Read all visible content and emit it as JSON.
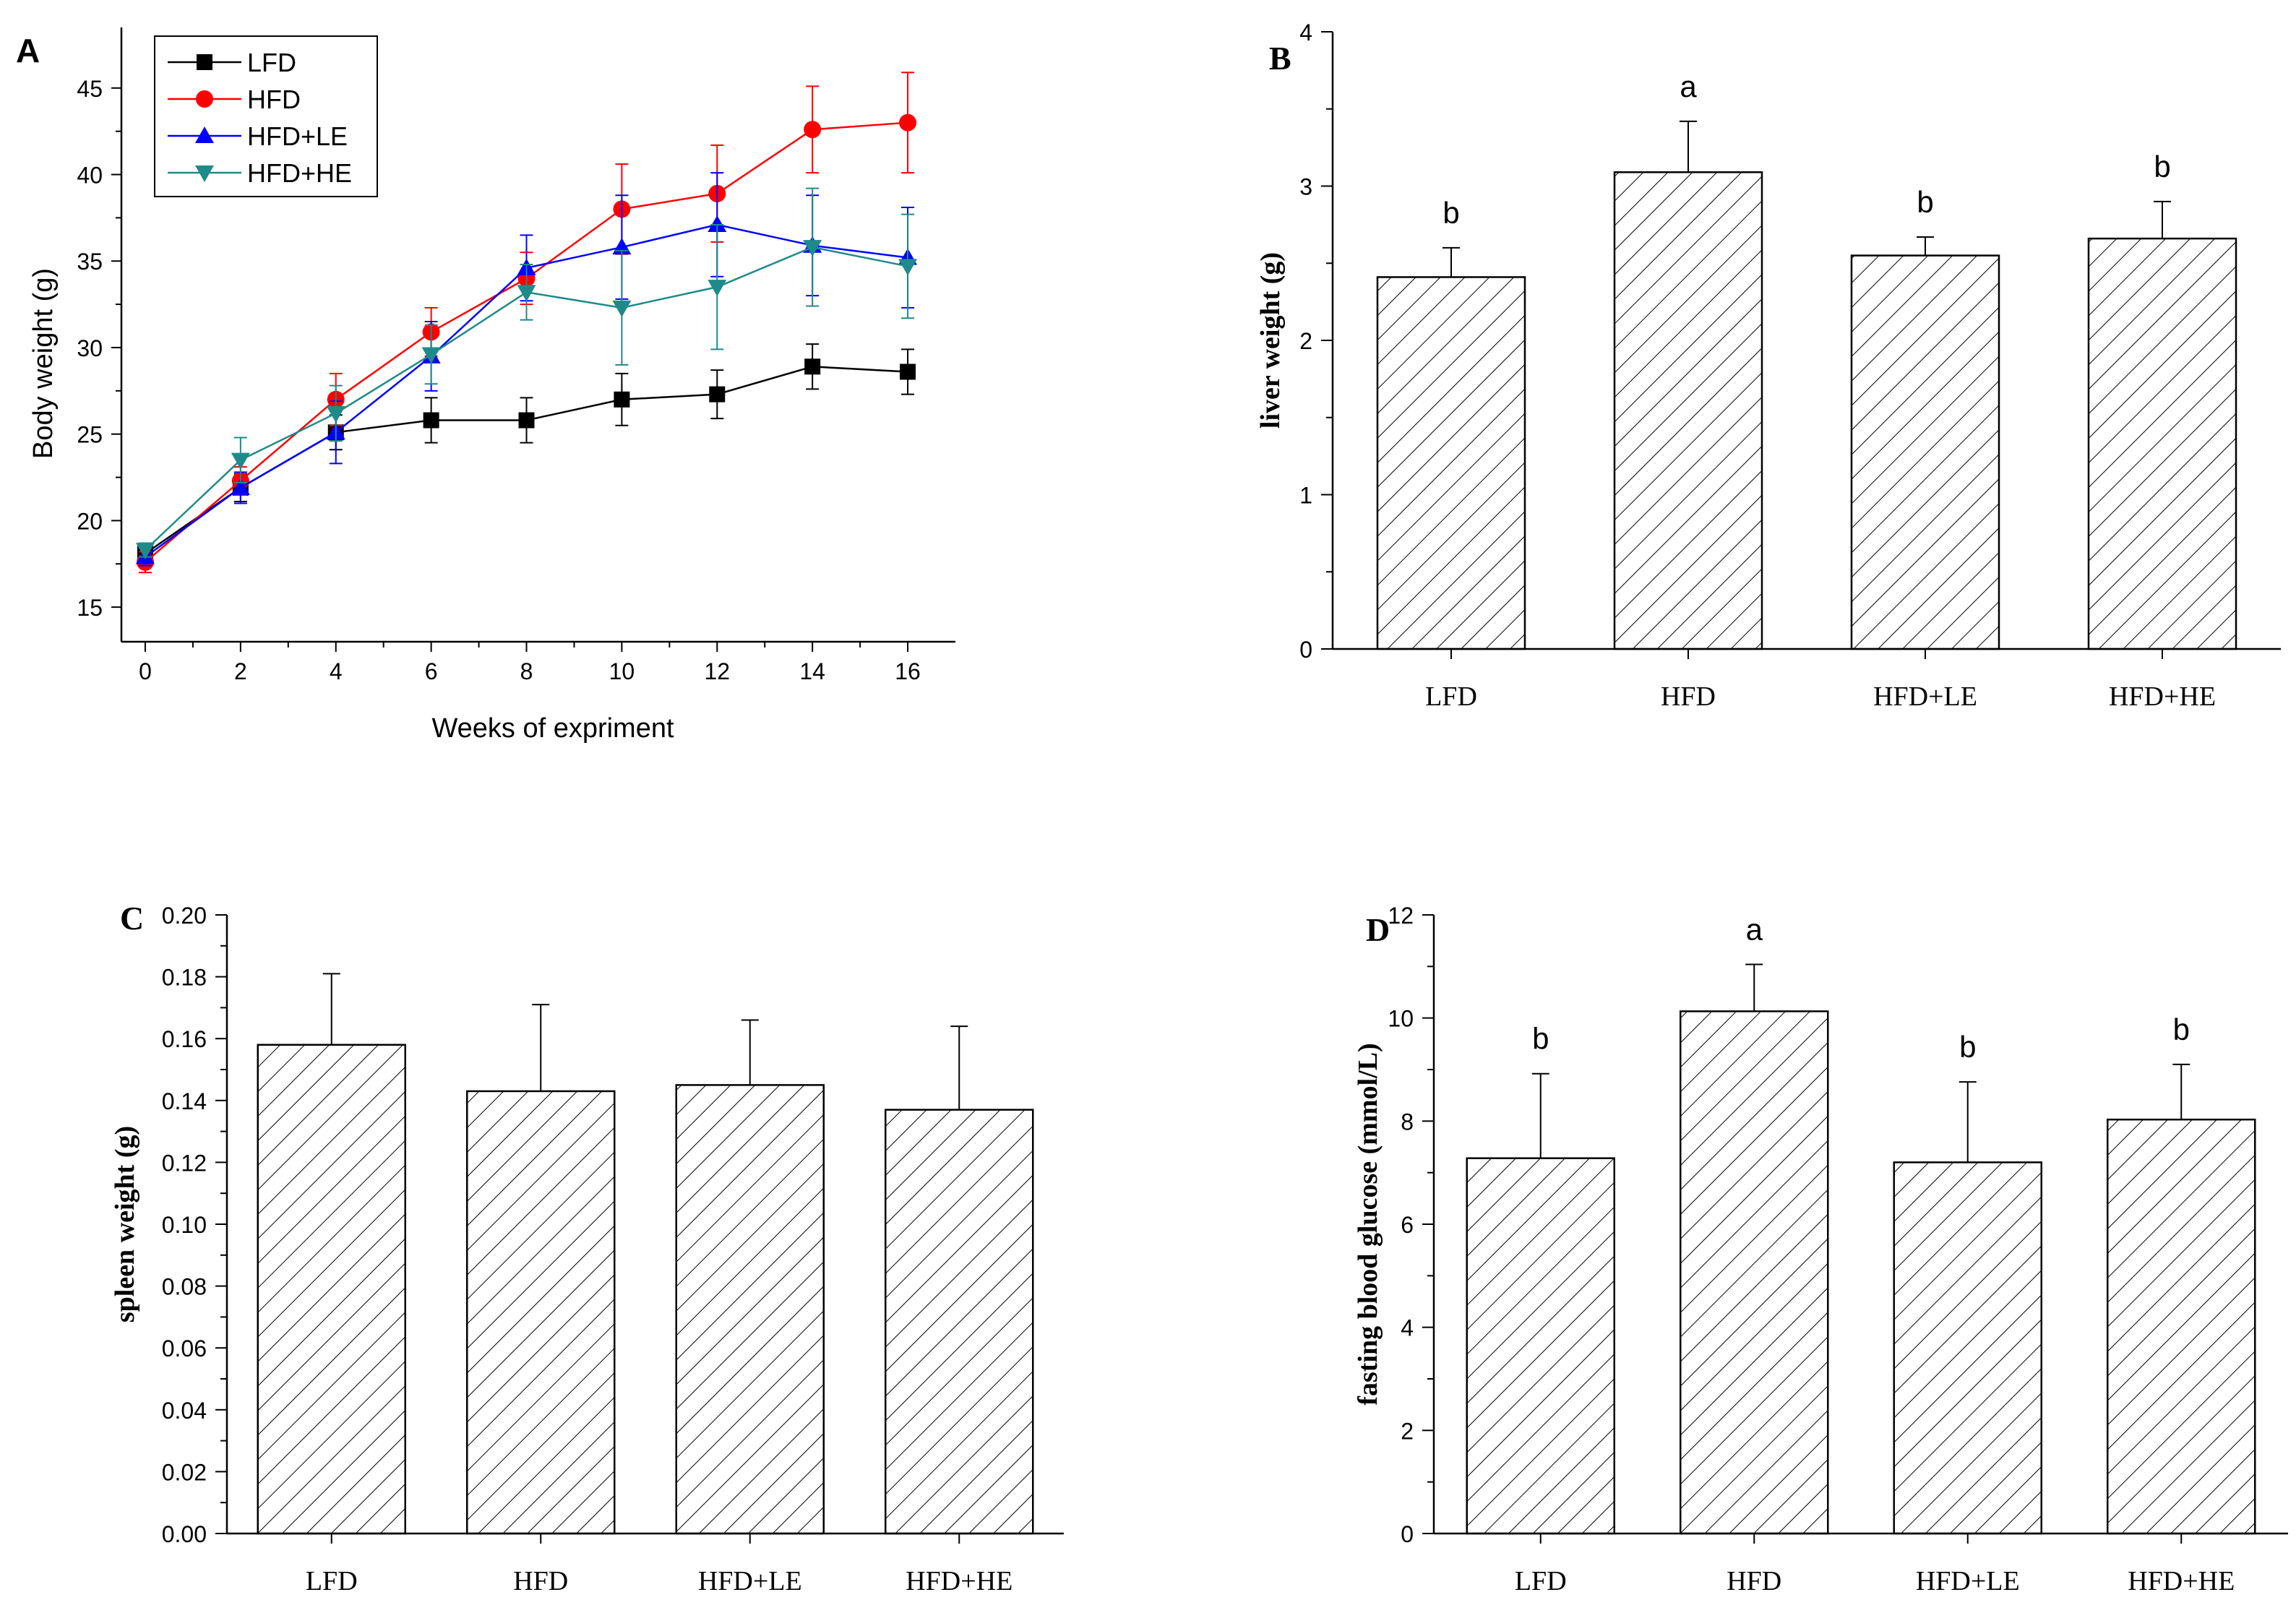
{
  "figure": {
    "panels": [
      "A",
      "B",
      "C",
      "D"
    ]
  },
  "chart_data": [
    {
      "panel": "A",
      "type": "line",
      "title": "",
      "xlabel": "Weeks of expriment",
      "ylabel": "Body weight (g)",
      "x": [
        0,
        2,
        4,
        6,
        8,
        10,
        12,
        14,
        16
      ],
      "xlim": [
        -0.5,
        17
      ],
      "ylim": [
        13,
        48.5
      ],
      "xticks": [
        0,
        2,
        4,
        6,
        8,
        10,
        12,
        14,
        16
      ],
      "yticks": [
        15,
        20,
        25,
        30,
        35,
        40,
        45
      ],
      "legend_position": "top-left",
      "series": [
        {
          "name": "LFD",
          "color": "#000000",
          "marker": "square",
          "values": [
            18.1,
            21.9,
            25.1,
            25.8,
            25.8,
            27.0,
            27.3,
            28.9,
            28.6
          ],
          "errors": [
            0.5,
            0.8,
            1.0,
            1.3,
            1.3,
            1.5,
            1.4,
            1.3,
            1.3
          ]
        },
        {
          "name": "HFD",
          "color": "#ff0000",
          "marker": "circle",
          "values": [
            17.6,
            22.3,
            27.0,
            30.9,
            34.0,
            38.0,
            38.9,
            42.6,
            43.0
          ],
          "errors": [
            0.6,
            0.8,
            1.5,
            1.4,
            1.5,
            2.6,
            2.8,
            2.5,
            2.9
          ]
        },
        {
          "name": "HFD+LE",
          "color": "#0000ff",
          "marker": "triangle-up",
          "values": [
            17.9,
            21.9,
            25.1,
            29.5,
            34.6,
            35.8,
            37.1,
            35.9,
            35.2
          ],
          "errors": [
            0.5,
            0.9,
            1.8,
            2.0,
            1.9,
            3.0,
            3.0,
            2.9,
            2.9
          ]
        },
        {
          "name": "HFD+HE",
          "color": "#1f8a8a",
          "marker": "triangle-down",
          "values": [
            18.3,
            23.5,
            26.2,
            29.6,
            33.2,
            32.3,
            33.5,
            35.8,
            34.7
          ],
          "errors": [
            0.4,
            1.3,
            1.6,
            1.7,
            1.6,
            3.3,
            3.6,
            3.4,
            3.0
          ]
        }
      ]
    },
    {
      "panel": "B",
      "type": "bar",
      "title": "",
      "xlabel": "",
      "ylabel": "liver weight (g)",
      "categories": [
        "LFD",
        "HFD",
        "HFD+LE",
        "HFD+HE"
      ],
      "values": [
        2.41,
        3.09,
        2.55,
        2.66
      ],
      "errors": [
        0.19,
        0.33,
        0.12,
        0.24
      ],
      "letters": [
        "b",
        "a",
        "b",
        "b"
      ],
      "ylim": [
        0,
        4
      ],
      "yticks": [
        "0",
        "1",
        "2",
        "3",
        "4"
      ]
    },
    {
      "panel": "C",
      "type": "bar",
      "title": "",
      "xlabel": "",
      "ylabel": "spleen weight (g)",
      "categories": [
        "LFD",
        "HFD",
        "HFD+LE",
        "HFD+HE"
      ],
      "values": [
        0.158,
        0.143,
        0.145,
        0.137
      ],
      "errors": [
        0.023,
        0.028,
        0.021,
        0.027
      ],
      "letters": [],
      "ylim": [
        0,
        0.2
      ],
      "yticks": [
        "0.00",
        "0.02",
        "0.04",
        "0.06",
        "0.08",
        "0.10",
        "0.12",
        "0.14",
        "0.16",
        "0.18",
        "0.20"
      ]
    },
    {
      "panel": "D",
      "type": "bar",
      "title": "",
      "xlabel": "",
      "ylabel": "fasting blood glucose (mmol/L)",
      "categories": [
        "LFD",
        "HFD",
        "HFD+LE",
        "HFD+HE"
      ],
      "values": [
        7.28,
        10.13,
        7.2,
        8.03
      ],
      "errors": [
        1.64,
        0.91,
        1.56,
        1.07
      ],
      "letters": [
        "b",
        "a",
        "b",
        "b"
      ],
      "ylim": [
        0,
        12
      ],
      "yticks": [
        "0",
        "2",
        "4",
        "6",
        "8",
        "10",
        "12"
      ]
    }
  ]
}
